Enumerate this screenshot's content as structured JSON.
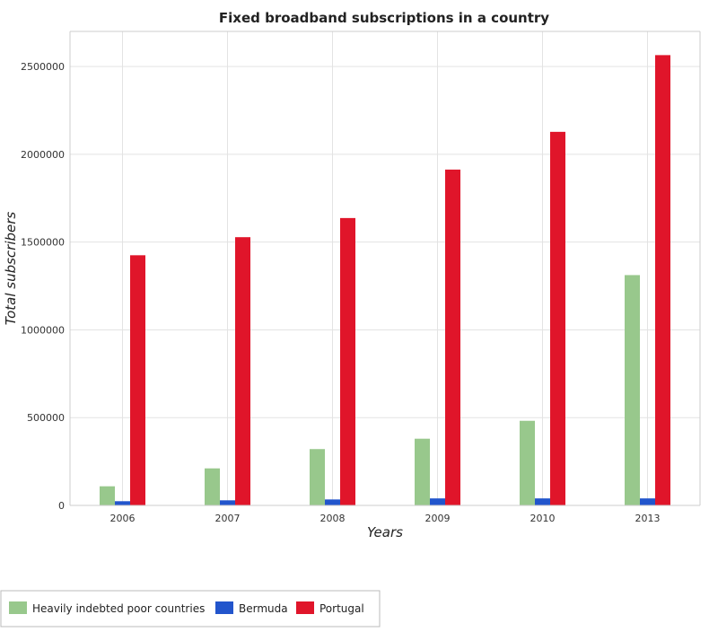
{
  "chart_data": {
    "type": "bar",
    "title": "Fixed broadband subscriptions in a country",
    "xlabel": "Years",
    "ylabel": "Total subscribers",
    "categories": [
      "2006",
      "2007",
      "2008",
      "2009",
      "2010",
      "2013"
    ],
    "ylim": [
      0,
      2700000
    ],
    "yticks": [
      0,
      500000,
      1000000,
      1500000,
      2000000,
      2500000
    ],
    "ytick_labels": [
      "0",
      "500000",
      "1000000",
      "1500000",
      "2000000",
      "2500000"
    ],
    "grid": true,
    "legend_position": "bottom-left",
    "series": [
      {
        "name": "Heavily indebted poor countries",
        "color": "#98c88c",
        "values": [
          109000,
          211000,
          321000,
          380000,
          482000,
          1312000
        ]
      },
      {
        "name": "Bermuda",
        "color": "#2255cc",
        "values": [
          24000,
          29000,
          34000,
          40000,
          40000,
          40000
        ]
      },
      {
        "name": "Portugal",
        "color": "#e0152a",
        "values": [
          1425000,
          1528000,
          1637000,
          1913000,
          2128000,
          2565000
        ]
      }
    ]
  }
}
